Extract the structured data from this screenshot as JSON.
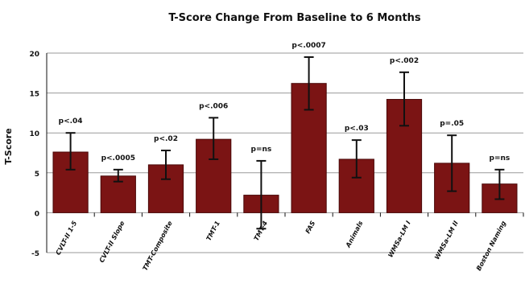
{
  "chart_data": {
    "type": "bar",
    "title": "T-Score Change From Baseline to 6 Months",
    "ylabel": "T-Score",
    "xlabel": "",
    "ylim": [
      -5,
      20
    ],
    "yticks": [
      -5,
      0,
      5,
      10,
      15,
      20
    ],
    "grid": true,
    "legend": "none",
    "colors": {
      "bar": "#7b1414",
      "bar_edge": "#4a0808",
      "grid": "#9a9a9a",
      "error": "#111111"
    },
    "categories": [
      "CVLT-II 1-5",
      "CVLT-II Slope",
      "TMT-Composite",
      "TMT-1",
      "TMT-4",
      "FAS",
      "Animals",
      "WMSa-LM I",
      "WMSa-LM II",
      "Boston Naming"
    ],
    "values": [
      7.6,
      4.6,
      6.0,
      9.2,
      2.2,
      16.2,
      6.7,
      14.2,
      6.2,
      3.6
    ],
    "error_low": [
      5.4,
      3.9,
      4.2,
      6.7,
      -2.0,
      12.9,
      4.4,
      10.9,
      2.7,
      1.7
    ],
    "error_high": [
      10.0,
      5.4,
      7.8,
      11.9,
      6.5,
      19.5,
      9.1,
      17.6,
      9.7,
      5.4
    ],
    "annotations": [
      "p<.04",
      "p<.0005",
      "p<.02",
      "p<.006",
      "p=ns",
      "p<.0007",
      "p<.03",
      "p<.002",
      "p=.05",
      "p=ns"
    ]
  }
}
